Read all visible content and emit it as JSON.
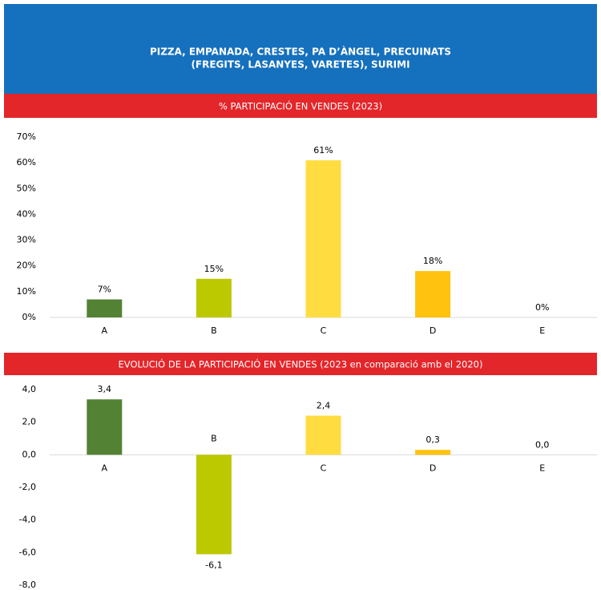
{
  "header": {
    "title": [
      "PIZZA, EMPANADA, CRESTES, PA D’ÀNGEL, PRECUINATS",
      "(FREGITS, LASANYES, VARETES), SURIMI"
    ]
  },
  "chart_data": [
    {
      "type": "bar",
      "title": "% PARTICIPACIÓ EN VENDES (2023)",
      "categories": [
        "A",
        "B",
        "C",
        "D",
        "E"
      ],
      "values": [
        7,
        15,
        61,
        18,
        0
      ],
      "value_labels": [
        "7%",
        "15%",
        "61%",
        "18%",
        "0%"
      ],
      "colors": [
        "#548235",
        "#bcc800",
        "#ffdd40",
        "#ffc20e",
        "#ffc20e"
      ],
      "ylim": [
        0,
        70
      ],
      "yticks": [
        {
          "value": 0,
          "label": "0%"
        },
        {
          "value": 10,
          "label": "10%"
        },
        {
          "value": 20,
          "label": "20%"
        },
        {
          "value": 30,
          "label": "30%"
        },
        {
          "value": 40,
          "label": "40%"
        },
        {
          "value": 50,
          "label": "50%"
        },
        {
          "value": 60,
          "label": "60%"
        },
        {
          "value": 70,
          "label": "70%"
        }
      ],
      "grid": false
    },
    {
      "type": "bar",
      "title": "EVOLUCIÓ DE LA PARTICIPACIÓ EN VENDES (2023 en comparació amb el 2020)",
      "categories": [
        "A",
        "B",
        "C",
        "D",
        "E"
      ],
      "values": [
        3.4,
        -6.1,
        2.4,
        0.3,
        0.0
      ],
      "value_labels": [
        "3,4",
        "-6,1",
        "2,4",
        "0,3",
        "0,0"
      ],
      "colors": [
        "#548235",
        "#bcc800",
        "#ffdd40",
        "#ffc20e",
        "#ffc20e"
      ],
      "ylim": [
        -8,
        4
      ],
      "yticks": [
        {
          "value": 4,
          "label": "4,0"
        },
        {
          "value": 2,
          "label": "2,0"
        },
        {
          "value": 0,
          "label": "0,0"
        },
        {
          "value": -2,
          "label": "-2,0"
        },
        {
          "value": -4,
          "label": "-4,0"
        },
        {
          "value": -6,
          "label": "-6,0"
        },
        {
          "value": -8,
          "label": "-8,0"
        }
      ],
      "grid": false
    }
  ]
}
